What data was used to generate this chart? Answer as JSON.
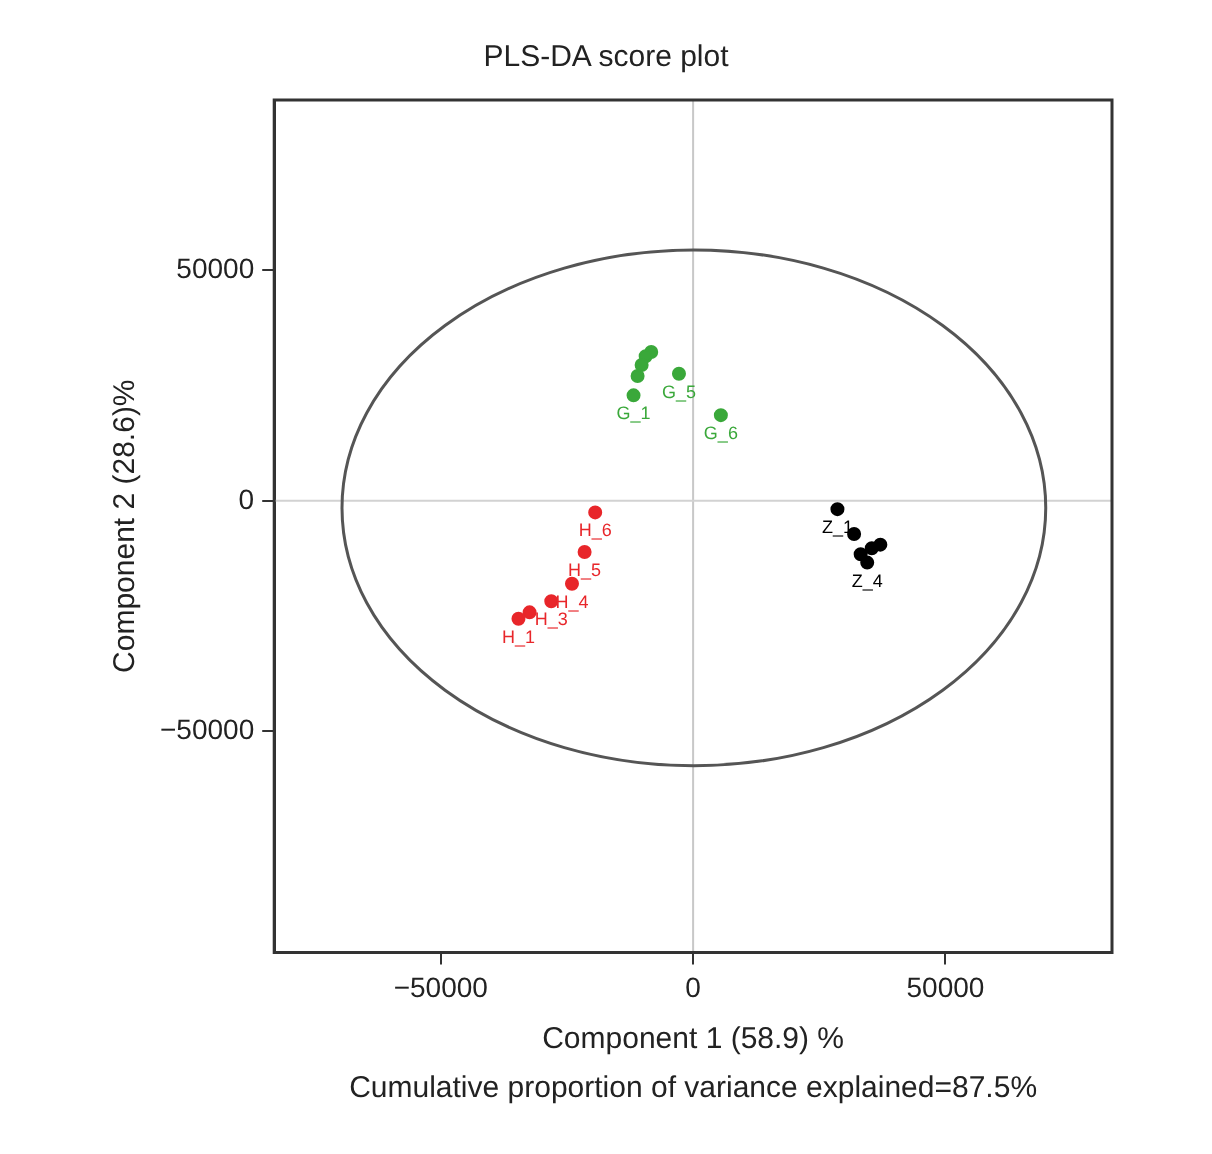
{
  "chart_data": {
    "type": "scatter",
    "title": "PLS-DA score plot",
    "xlabel": "Component 1 (58.9) %",
    "ylabel": "Component 2 (28.6)%",
    "xlim": [
      -83000,
      83000
    ],
    "ylim": [
      -98000,
      87000
    ],
    "xticks": [
      {
        "value": -50000,
        "label": "−50000"
      },
      0,
      50000
    ],
    "yticks": [
      {
        "value": -50000,
        "label": "−50000"
      },
      0,
      50000
    ],
    "marker": "circle",
    "ref_lines": [
      {
        "axis": "x",
        "value": 0,
        "color": "#c8c8c8"
      },
      {
        "axis": "y",
        "value": 0,
        "color": "#d2d2d2"
      }
    ],
    "series": [
      {
        "color": "#3aa83a",
        "x": [
          -8300,
          -9400,
          -10200,
          -11000,
          -11800,
          -2800,
          5500
        ],
        "values": [
          32300,
          31400,
          29500,
          27100,
          22900,
          27600,
          18600
        ]
      },
      {
        "color": "#e8262a",
        "x": [
          -19400,
          -21500,
          -24000,
          -28100,
          -32400,
          -34600
        ],
        "values": [
          -2500,
          -11100,
          -18000,
          -21800,
          -24200,
          -25600
        ]
      },
      {
        "color": "#000000",
        "x": [
          28600,
          31900,
          37100,
          35400,
          33200,
          34500
        ],
        "values": [
          -1800,
          -7200,
          -9500,
          -10300,
          -11600,
          -13400
        ]
      }
    ],
    "annotations": [
      {
        "text": "G_1",
        "x": -11800,
        "y": 22900
      },
      {
        "text": "G_5",
        "x": -2800,
        "y": 27600
      },
      {
        "text": "G_6",
        "x": 5500,
        "y": 18600
      },
      {
        "text": "H_6",
        "x": -19400,
        "y": -2500
      },
      {
        "text": "H_5",
        "x": -21500,
        "y": -11100
      },
      {
        "text": "H_4",
        "x": -24000,
        "y": -18000
      },
      {
        "text": "H_3",
        "x": -28100,
        "y": -21800
      },
      {
        "text": "H_1",
        "x": -34600,
        "y": -25600
      },
      {
        "text": "Z_1",
        "x": 28600,
        "y": -1800
      },
      {
        "text": "Z_4",
        "x": 34500,
        "y": -13400
      },
      "Cumulative proportion of variance explained=87.5%"
    ]
  }
}
